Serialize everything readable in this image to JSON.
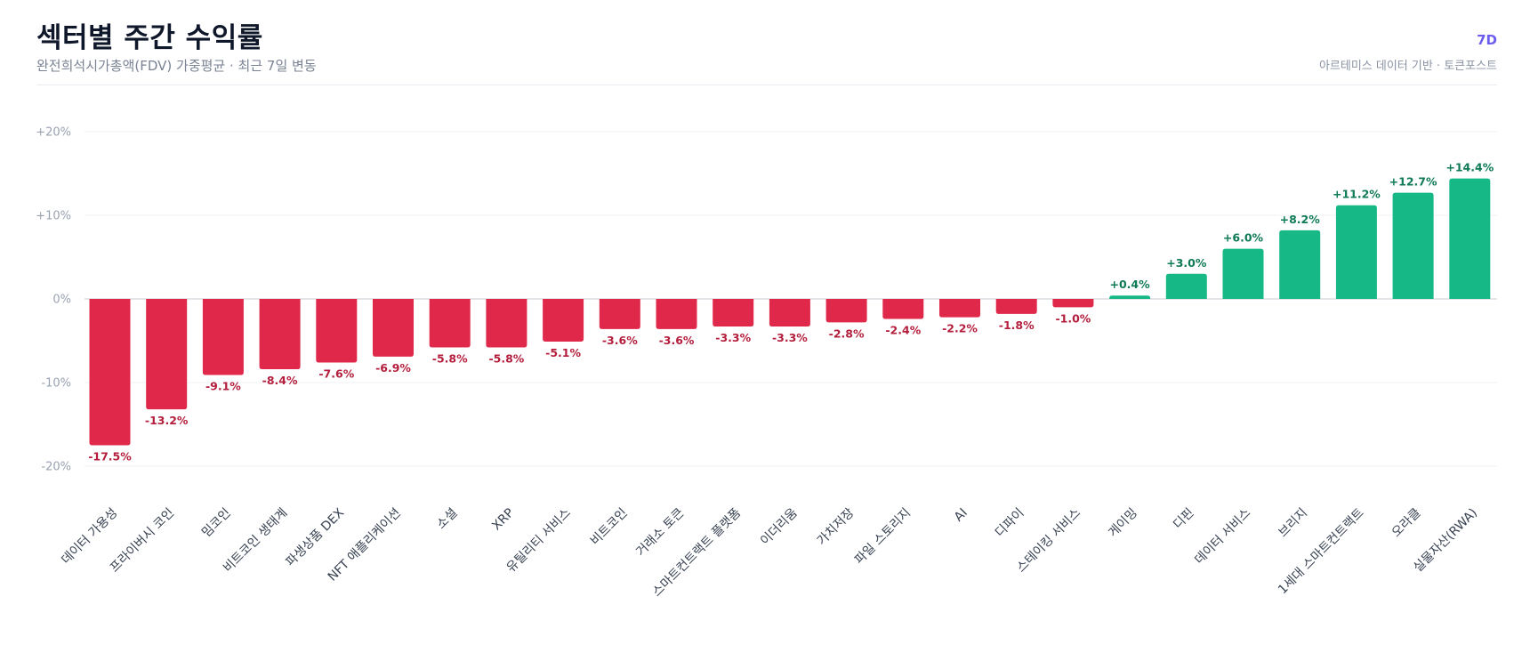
{
  "header": {
    "title": "섹터별 주간 수익률",
    "subtitle": "완전희석시가총액(FDV) 가중평균 · 최근 7일 변동",
    "period": "7D",
    "source": "아르테미스 데이터 기반 · 토큰포스트"
  },
  "colors": {
    "positive": "#16b985",
    "negative": "#e0284b",
    "positive_label": "#0e7a56",
    "negative_label": "#b41e3c",
    "grid": "#eef0f3",
    "zero_line": "#d9dde3"
  },
  "chart_data": {
    "type": "bar",
    "title": "섹터별 주간 수익률",
    "subtitle": "완전희석시가총액(FDV) 가중평균 · 최근 7일 변동",
    "ylim": [
      -20,
      20
    ],
    "yticks": [
      20,
      10,
      0,
      -10,
      -20
    ],
    "ytick_labels": [
      "+20%",
      "+10%",
      "0%",
      "-10%",
      "-20%"
    ],
    "grid": true,
    "categories": [
      "데이터 가용성",
      "프라이버시 코인",
      "밈코인",
      "비트코인 생태계",
      "파생상품 DEX",
      "NFT 애플리케이션",
      "소셜",
      "XRP",
      "유틸리티 서비스",
      "비트코인",
      "거래소 토큰",
      "스마트컨트랙트 플랫폼",
      "이더리움",
      "가치저장",
      "파일 스토리지",
      "AI",
      "디파이",
      "스테이킹 서비스",
      "게이밍",
      "디핀",
      "데이터 서비스",
      "브리지",
      "1세대 스마트컨트랙트",
      "오라클",
      "실물자산(RWA)"
    ],
    "values": [
      -17.5,
      -13.2,
      -9.1,
      -8.4,
      -7.6,
      -6.9,
      -5.8,
      -5.8,
      -5.1,
      -3.6,
      -3.6,
      -3.3,
      -3.3,
      -2.8,
      -2.4,
      -2.2,
      -1.8,
      -1.0,
      0.4,
      3.0,
      6.0,
      8.2,
      11.2,
      12.7,
      14.4
    ],
    "value_labels": [
      "-17.5%",
      "-13.2%",
      "-9.1%",
      "-8.4%",
      "-7.6%",
      "-6.9%",
      "-5.8%",
      "-5.8%",
      "-5.1%",
      "-3.6%",
      "-3.6%",
      "-3.3%",
      "-3.3%",
      "-2.8%",
      "-2.4%",
      "-2.2%",
      "-1.8%",
      "-1.0%",
      "+0.4%",
      "+3.0%",
      "+6.0%",
      "+8.2%",
      "+11.2%",
      "+12.7%",
      "+14.4%"
    ]
  }
}
